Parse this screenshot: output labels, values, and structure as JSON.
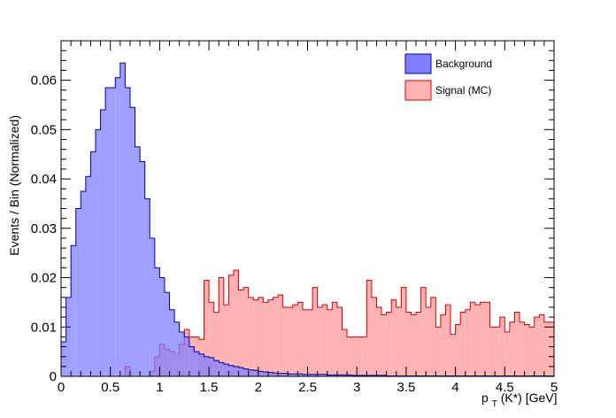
{
  "chart_data": {
    "type": "histogram",
    "xlabel_main": "p",
    "xlabel_sub": "T",
    "xlabel_rest": "(K*) [GeV]",
    "ylabel": "Events / Bin (Normalized)",
    "xlim": [
      0,
      5
    ],
    "ylim": [
      0,
      0.068
    ],
    "x_ticks": [
      "0",
      "0.5",
      "1",
      "1.5",
      "2",
      "2.5",
      "3",
      "3.5",
      "4",
      "4.5",
      "5"
    ],
    "y_ticks": [
      "0",
      "0.01",
      "0.02",
      "0.03",
      "0.04",
      "0.05",
      "0.06"
    ],
    "grid": false,
    "legend_position": "top-right",
    "bin_width": 0.05,
    "series": [
      {
        "name": "Background",
        "fill": "#7f7fff",
        "line": "#0000b0",
        "values": [
          0.007,
          0.016,
          0.0265,
          0.034,
          0.0375,
          0.0405,
          0.0455,
          0.05,
          0.054,
          0.0585,
          0.0585,
          0.0605,
          0.0635,
          0.0585,
          0.0545,
          0.0465,
          0.0435,
          0.036,
          0.028,
          0.022,
          0.02,
          0.017,
          0.0135,
          0.011,
          0.009,
          0.008,
          0.006,
          0.005,
          0.0045,
          0.004,
          0.0038,
          0.0032,
          0.0028,
          0.0025,
          0.0022,
          0.002,
          0.0018,
          0.0015,
          0.0013,
          0.0012,
          0.001,
          0.0009,
          0.0008,
          0.0007,
          0.0006,
          0.0006,
          0.0005,
          0.0005,
          0.0005,
          0.0004,
          0.0004,
          0.0004,
          0.0004,
          0.0004,
          0.0003,
          0.0003,
          0.0003,
          0.0003,
          0.0003,
          0.0002,
          0.0002,
          0.0002,
          0.0002,
          0.0002,
          0.0002,
          0.0002,
          0.0001,
          0.0001,
          0.0001,
          0.0001,
          0.0001,
          0.0001,
          0.0001,
          0.0001,
          0.0001,
          0.0001,
          0.0001,
          0.0001,
          0.0001,
          0.0001,
          0.0001,
          0.0001,
          0.0001,
          0.0001,
          0.0001,
          0.0001,
          0.0001,
          0.0001,
          0.0001,
          0.0001,
          0.0001,
          0.0001,
          0.0001,
          0.0001,
          0.0001,
          0.0001,
          0.0001,
          0.0001,
          0.0001,
          0.0001
        ]
      },
      {
        "name": "Signal (MC)",
        "fill": "#ffb2b2",
        "line": "#dd0000",
        "values": [
          0,
          0,
          0,
          0,
          0,
          0,
          0,
          0,
          0,
          0,
          0,
          0,
          0,
          0.002,
          0,
          0,
          0,
          0,
          0.001,
          0.004,
          0.0065,
          0.0055,
          0.005,
          0.0045,
          0.0065,
          0.0095,
          0.008,
          0.008,
          0.0075,
          0.0195,
          0.015,
          0.013,
          0.02,
          0.0145,
          0.0205,
          0.0215,
          0.0175,
          0.018,
          0.016,
          0.0155,
          0.016,
          0.015,
          0.0155,
          0.016,
          0.0165,
          0.014,
          0.014,
          0.0145,
          0.015,
          0.0135,
          0.0135,
          0.018,
          0.014,
          0.0145,
          0.0135,
          0.015,
          0.014,
          0.0095,
          0.008,
          0.008,
          0.008,
          0.008,
          0.0195,
          0.016,
          0.014,
          0.0125,
          0.013,
          0.0155,
          0.014,
          0.018,
          0.013,
          0.0125,
          0.013,
          0.018,
          0.014,
          0.016,
          0.01,
          0.0125,
          0.0145,
          0.0085,
          0.0105,
          0.013,
          0.0135,
          0.015,
          0.0145,
          0.015,
          0.015,
          0.01,
          0.01,
          0.012,
          0.009,
          0.011,
          0.013,
          0.011,
          0.0105,
          0.01,
          0.012,
          0.0125,
          0.011,
          0.011
        ]
      }
    ]
  }
}
